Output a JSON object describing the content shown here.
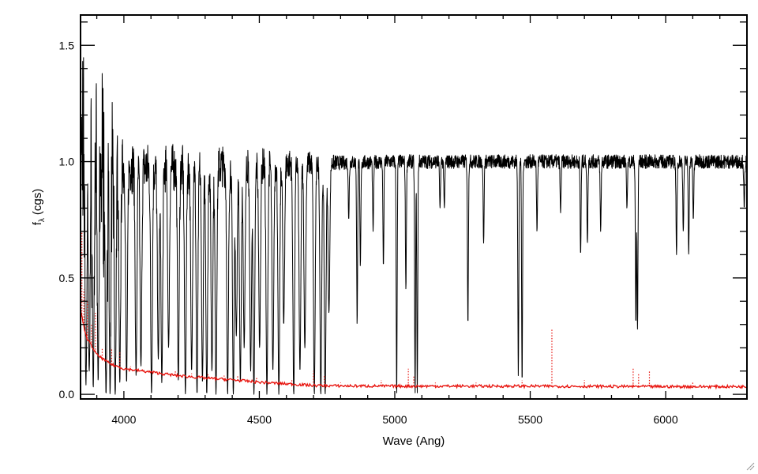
{
  "chart_data": {
    "type": "line",
    "xlabel": "Wave (Ang)",
    "ylabel_main": "f",
    "ylabel_sub": "λ",
    "ylabel_unit": "(cgs)",
    "xlim": [
      3840,
      6300
    ],
    "ylim": [
      -0.02,
      1.63
    ],
    "x_ticks": [
      4000,
      4500,
      5000,
      5500,
      6000
    ],
    "x_minor_step": 100,
    "y_ticks": [
      0.0,
      0.5,
      1.0,
      1.5
    ],
    "y_tick_labels": [
      "0.0",
      "0.5",
      "1.0",
      "1.5"
    ],
    "y_minor_step": 0.1,
    "grid": false,
    "series": [
      {
        "role": "flux",
        "color": "#000000",
        "style": "solid",
        "continuum": [
          [
            3840,
            1.0
          ],
          [
            4100,
            0.97
          ],
          [
            4600,
            0.99
          ],
          [
            5000,
            1.0
          ],
          [
            6300,
            1.0
          ]
        ],
        "noise": [
          [
            3840,
            0.32
          ],
          [
            3950,
            0.22
          ],
          [
            4000,
            0.12
          ],
          [
            4600,
            0.07
          ],
          [
            4800,
            0.03
          ],
          [
            6300,
            0.03
          ]
        ],
        "absorption_lines": [
          [
            3860,
            0.04
          ],
          [
            3872,
            0.1
          ],
          [
            3887,
            0.03
          ],
          [
            3905,
            0.06
          ],
          [
            3934,
            0.0
          ],
          [
            3949,
            0.0
          ],
          [
            3968,
            0.0
          ],
          [
            3985,
            0.05
          ],
          [
            4010,
            0.05
          ],
          [
            4045,
            0.08
          ],
          [
            4063,
            0.12
          ],
          [
            4102,
            0.0
          ],
          [
            4127,
            0.15
          ],
          [
            4140,
            0.05
          ],
          [
            4165,
            0.2
          ],
          [
            4201,
            0.06
          ],
          [
            4227,
            0.0
          ],
          [
            4250,
            0.1
          ],
          [
            4270,
            0.0
          ],
          [
            4290,
            0.05
          ],
          [
            4306,
            0.0
          ],
          [
            4325,
            0.1
          ],
          [
            4340,
            0.0
          ],
          [
            4383,
            0.0
          ],
          [
            4404,
            0.0
          ],
          [
            4415,
            0.25
          ],
          [
            4430,
            0.05
          ],
          [
            4444,
            0.2
          ],
          [
            4468,
            0.1
          ],
          [
            4480,
            0.0
          ],
          [
            4501,
            0.2
          ],
          [
            4528,
            0.0
          ],
          [
            4550,
            0.1
          ],
          [
            4572,
            0.0
          ],
          [
            4590,
            0.3
          ],
          [
            4627,
            0.0
          ],
          [
            4650,
            0.1
          ],
          [
            4668,
            0.2
          ],
          [
            4703,
            0.0
          ],
          [
            4727,
            0.0
          ],
          [
            4743,
            0.0
          ],
          [
            4757,
            0.35
          ],
          [
            4830,
            0.75
          ],
          [
            4861,
            0.3
          ],
          [
            4873,
            0.55
          ],
          [
            4920,
            0.7
          ],
          [
            4958,
            0.55
          ],
          [
            5007,
            0.0
          ],
          [
            5041,
            0.45
          ],
          [
            5075,
            0.0
          ],
          [
            5083,
            0.0
          ],
          [
            5167,
            0.8
          ],
          [
            5183,
            0.8
          ],
          [
            5270,
            0.3
          ],
          [
            5328,
            0.65
          ],
          [
            5456,
            0.08
          ],
          [
            5470,
            0.05
          ],
          [
            5525,
            0.7
          ],
          [
            5612,
            0.78
          ],
          [
            5686,
            0.6
          ],
          [
            5711,
            0.65
          ],
          [
            5760,
            0.7
          ],
          [
            5857,
            0.8
          ],
          [
            5890,
            0.3
          ],
          [
            5896,
            0.28
          ],
          [
            6040,
            0.6
          ],
          [
            6065,
            0.7
          ],
          [
            6085,
            0.6
          ],
          [
            6102,
            0.75
          ],
          [
            6290,
            0.8
          ]
        ]
      },
      {
        "role": "error",
        "color": "#e8120c",
        "style": "solid",
        "points": [
          [
            3840,
            0.36
          ],
          [
            3860,
            0.25
          ],
          [
            3900,
            0.17
          ],
          [
            3950,
            0.13
          ],
          [
            4000,
            0.11
          ],
          [
            4100,
            0.095
          ],
          [
            4200,
            0.08
          ],
          [
            4300,
            0.07
          ],
          [
            4400,
            0.062
          ],
          [
            4500,
            0.052
          ],
          [
            4600,
            0.045
          ],
          [
            4700,
            0.038
          ],
          [
            4800,
            0.036
          ],
          [
            5000,
            0.035
          ],
          [
            5500,
            0.035
          ],
          [
            6000,
            0.033
          ],
          [
            6300,
            0.033
          ]
        ]
      },
      {
        "role": "error-spikes",
        "color": "#e8120c",
        "style": "dotted",
        "spikes": [
          [
            3845,
            0.7
          ],
          [
            3852,
            0.45
          ],
          [
            3865,
            0.4
          ],
          [
            3880,
            0.3
          ],
          [
            3895,
            0.35
          ],
          [
            3920,
            0.2
          ],
          [
            3955,
            0.2
          ],
          [
            3985,
            0.18
          ],
          [
            4025,
            0.12
          ],
          [
            4070,
            0.11
          ],
          [
            4130,
            0.1
          ],
          [
            4190,
            0.1
          ],
          [
            4250,
            0.09
          ],
          [
            4310,
            0.09
          ],
          [
            4370,
            0.08
          ],
          [
            4420,
            0.08
          ],
          [
            4490,
            0.07
          ],
          [
            4560,
            0.06
          ],
          [
            4620,
            0.06
          ],
          [
            4700,
            0.1
          ],
          [
            4740,
            0.08
          ],
          [
            4800,
            0.05
          ],
          [
            4950,
            0.06
          ],
          [
            5050,
            0.11
          ],
          [
            5070,
            0.08
          ],
          [
            5150,
            0.05
          ],
          [
            5300,
            0.05
          ],
          [
            5470,
            0.06
          ],
          [
            5580,
            0.28
          ],
          [
            5700,
            0.06
          ],
          [
            5880,
            0.11
          ],
          [
            5900,
            0.09
          ],
          [
            5940,
            0.1
          ],
          [
            6100,
            0.05
          ]
        ]
      }
    ]
  }
}
